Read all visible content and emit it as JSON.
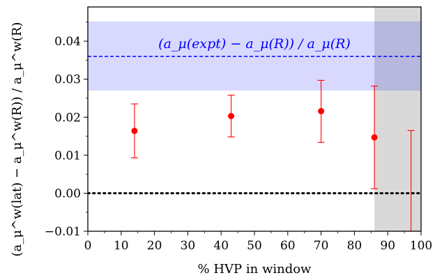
{
  "chart_data": {
    "type": "scatter",
    "xlabel": "% HVP in window",
    "ylabel": "(a_μ^w(lat) − a_μ^w(R)) / a_μ^w(R)",
    "xlim": [
      0,
      100
    ],
    "ylim": [
      -0.01,
      0.049
    ],
    "x_ticks": [
      0,
      10,
      20,
      30,
      40,
      50,
      60,
      70,
      80,
      90,
      100
    ],
    "x_tick_labels": [
      "0",
      "10",
      "20",
      "30",
      "40",
      "50",
      "60",
      "70",
      "80",
      "90",
      "100"
    ],
    "y_ticks": [
      -0.01,
      0.0,
      0.01,
      0.02,
      0.03,
      0.04
    ],
    "y_tick_labels": [
      "−0.01",
      "0.00",
      "0.01",
      "0.02",
      "0.03",
      "0.04"
    ],
    "grid": false,
    "points": [
      {
        "x": 14,
        "y": 0.0164,
        "err_low": 0.0093,
        "err_high": 0.0235
      },
      {
        "x": 43,
        "y": 0.0203,
        "err_low": 0.0148,
        "err_high": 0.0258
      },
      {
        "x": 70,
        "y": 0.0216,
        "err_low": 0.0134,
        "err_high": 0.0297
      },
      {
        "x": 86,
        "y": 0.0147,
        "err_low": 0.0012,
        "err_high": 0.0282
      },
      {
        "x": 97,
        "y": null,
        "err_low": -0.01,
        "err_high": 0.0165
      }
    ],
    "band": {
      "label": "(a_μ(expt) − a_μ(R)) / a_μ(R)",
      "center": 0.036,
      "low": 0.027,
      "high": 0.0452,
      "color": "#0000ff"
    },
    "reference_line": {
      "y": 0.0,
      "style": "dotted",
      "color": "#000000"
    },
    "shaded_region": {
      "x_from": 86,
      "x_to": 100,
      "color": "#808080"
    },
    "point_color": "#ff0000"
  }
}
